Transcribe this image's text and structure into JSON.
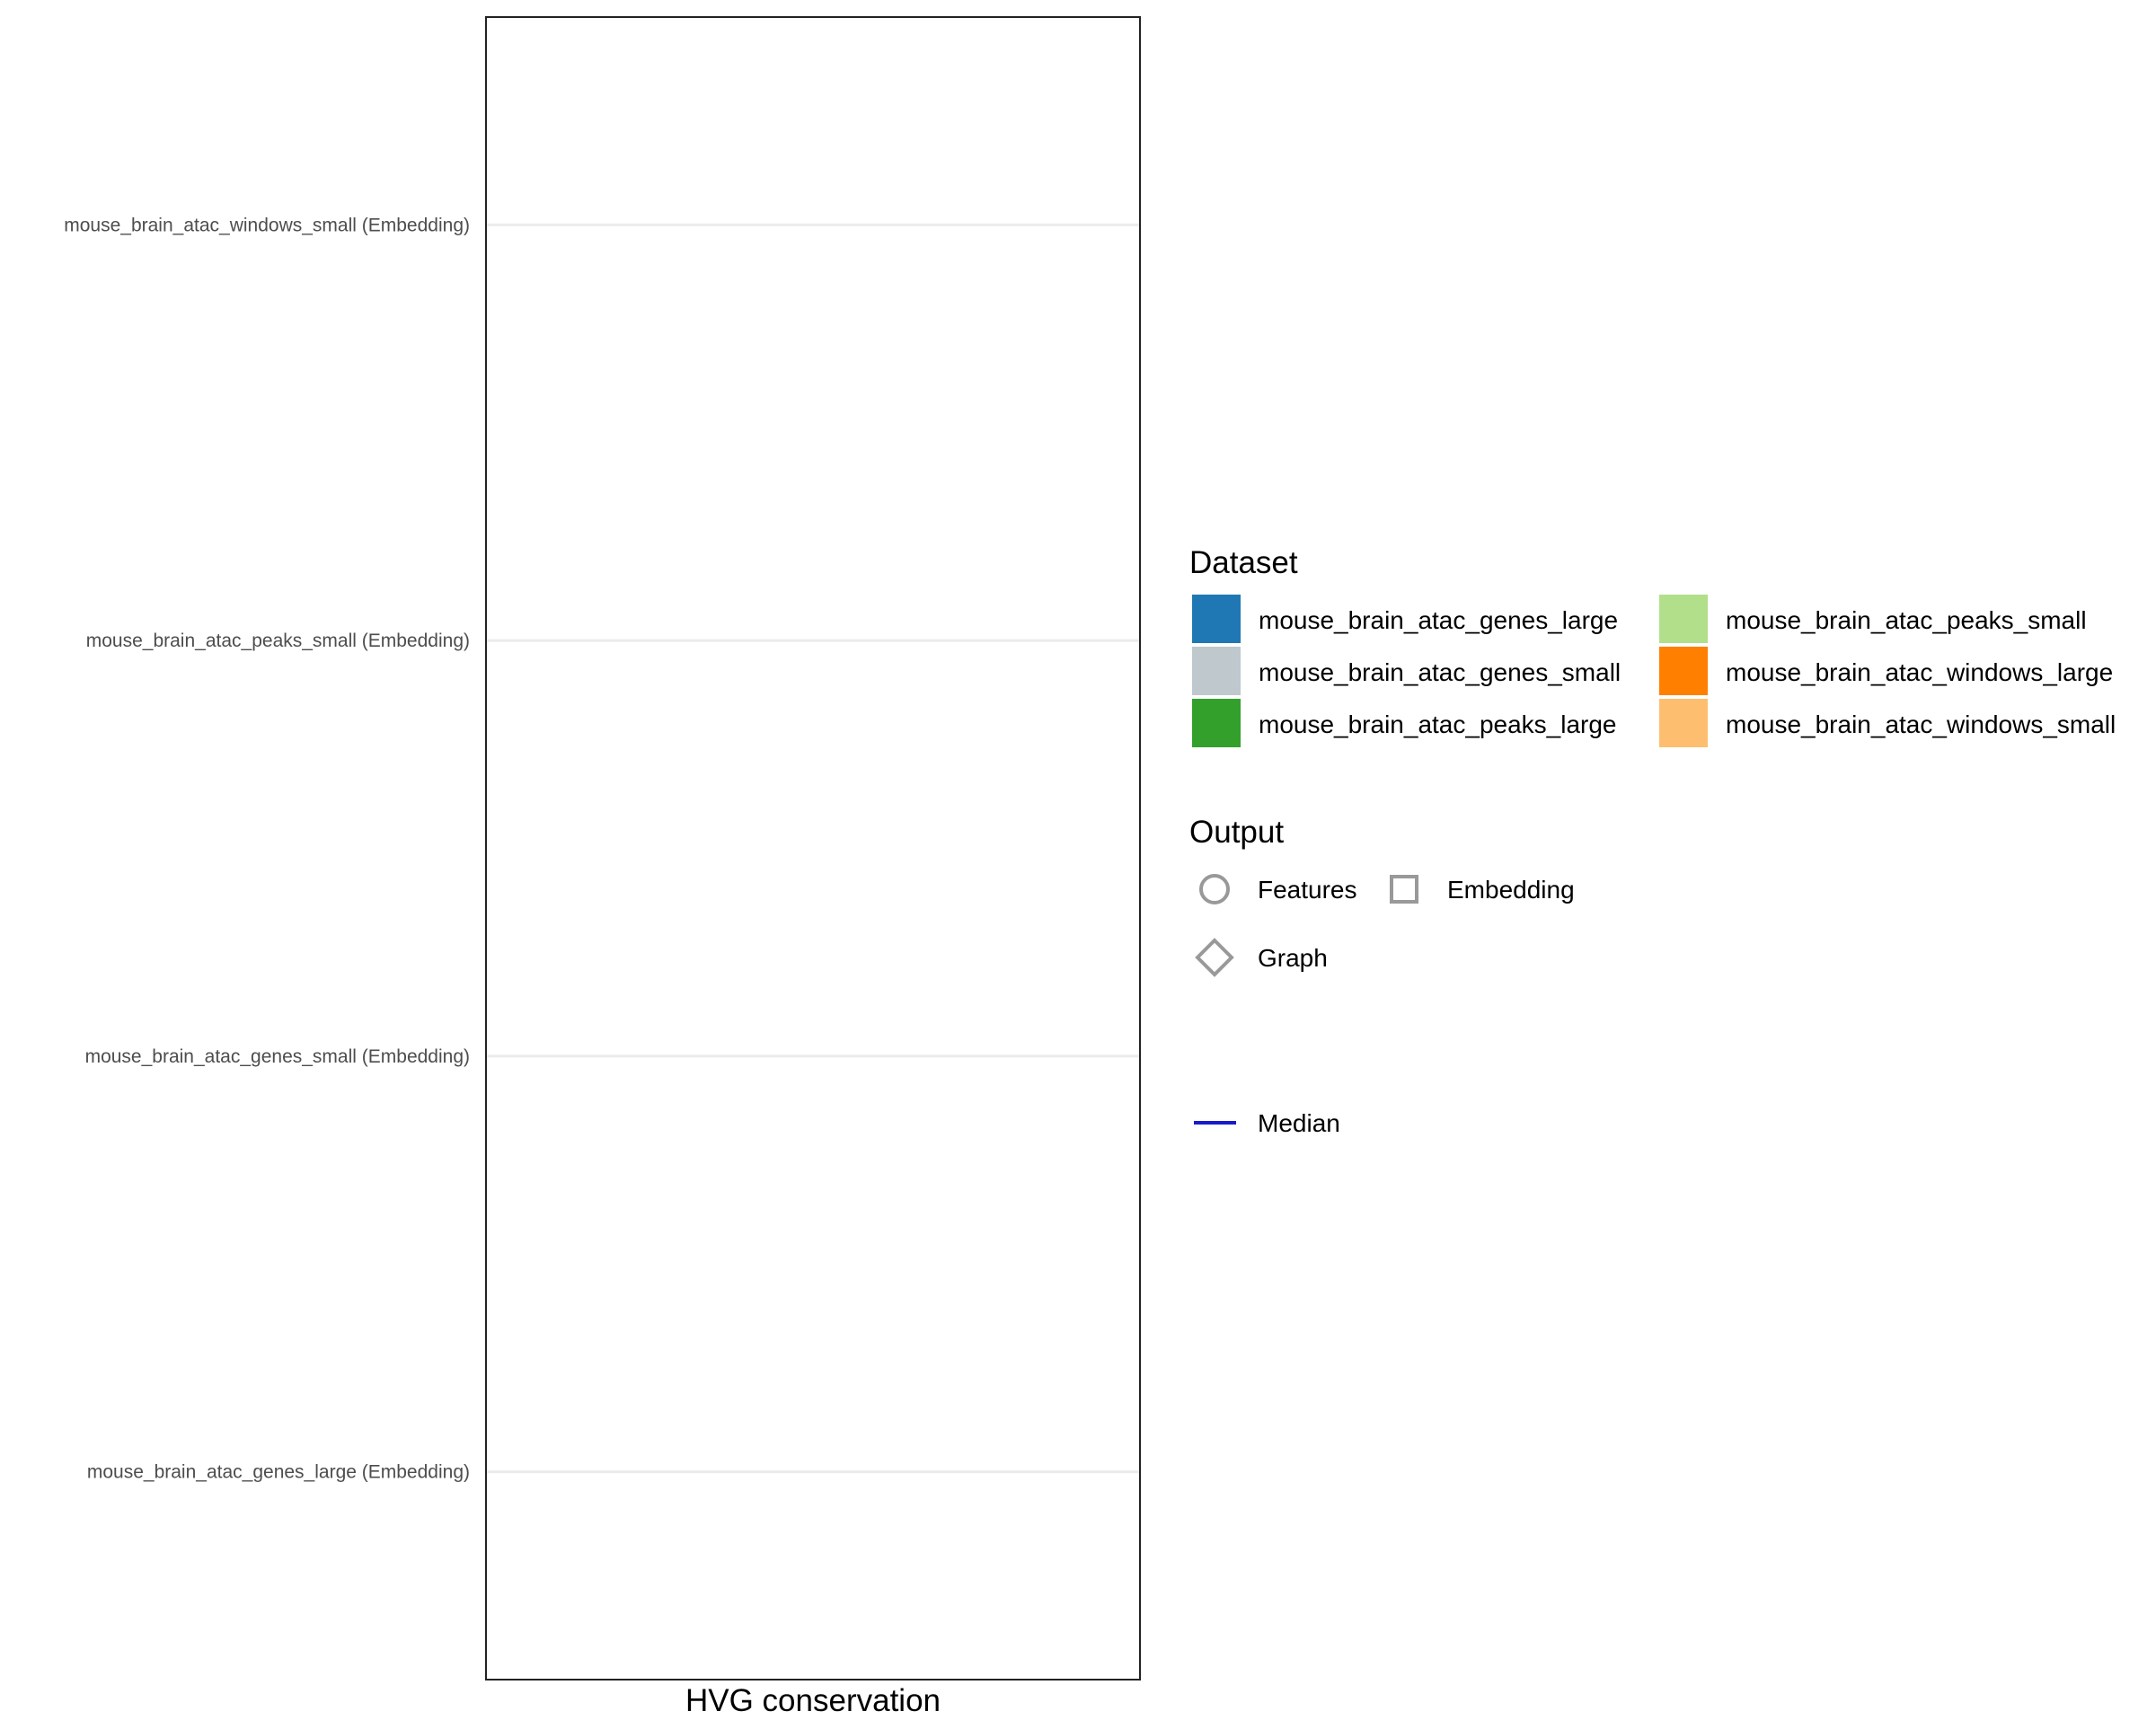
{
  "chart_data": {
    "type": "scatter",
    "categories": [
      "mouse_brain_atac_windows_small (Embedding)",
      "mouse_brain_atac_peaks_small (Embedding)",
      "mouse_brain_atac_genes_small (Embedding)",
      "mouse_brain_atac_genes_large (Embedding)"
    ],
    "xlabel": "HVG conservation",
    "ylabel": "",
    "series": [],
    "grid": {
      "horizontal": true,
      "vertical": false
    },
    "legend": {
      "placement": "right",
      "dataset": {
        "title": "Dataset",
        "items": [
          {
            "label": "mouse_brain_atac_genes_large",
            "color": "#1f78b4"
          },
          {
            "label": "mouse_brain_atac_genes_small",
            "color": "#bec8cd"
          },
          {
            "label": "mouse_brain_atac_peaks_large",
            "color": "#33a02c"
          },
          {
            "label": "mouse_brain_atac_peaks_small",
            "color": "#b2df8a"
          },
          {
            "label": "mouse_brain_atac_windows_large",
            "color": "#ff7f00"
          },
          {
            "label": "mouse_brain_atac_windows_small",
            "color": "#fdbf6f"
          }
        ]
      },
      "output": {
        "title": "Output",
        "items": [
          {
            "label": "Features",
            "shape": "circle"
          },
          {
            "label": "Embedding",
            "shape": "square"
          },
          {
            "label": "Graph",
            "shape": "diamond"
          }
        ]
      },
      "median": {
        "label": "Median",
        "color": "#1a1acd"
      }
    }
  }
}
